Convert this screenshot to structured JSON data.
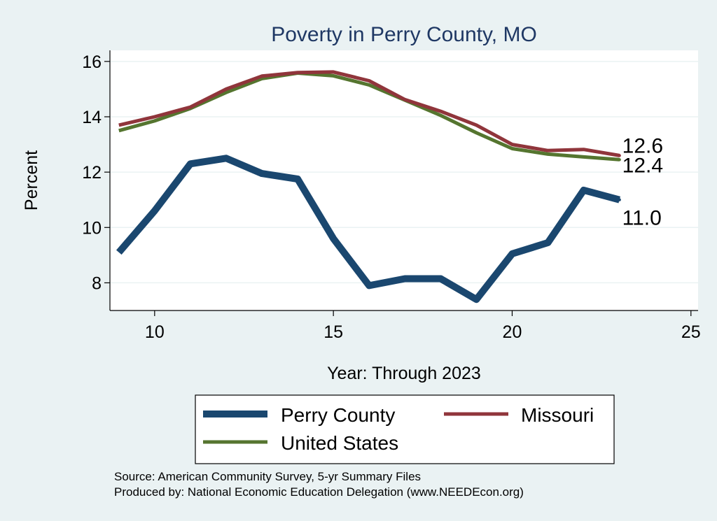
{
  "chart_data": {
    "type": "line",
    "title": "Poverty in Perry County, MO",
    "xlabel": "Year: Through 2023",
    "ylabel": "Percent",
    "xlim": [
      8.75,
      25.2
    ],
    "ylim": [
      7.0,
      16.4
    ],
    "xticks": [
      10,
      15,
      20,
      25
    ],
    "yticks": [
      8,
      10,
      12,
      14,
      16
    ],
    "grid": true,
    "legend_position": "bottom",
    "x": [
      9,
      10,
      11,
      12,
      13,
      14,
      15,
      16,
      17,
      18,
      19,
      20,
      21,
      22,
      23
    ],
    "series": [
      {
        "name": "Perry County",
        "color": "#1a476f",
        "values": [
          9.1,
          10.6,
          12.3,
          12.5,
          11.95,
          11.75,
          9.6,
          7.9,
          8.15,
          8.15,
          7.4,
          9.05,
          9.45,
          11.35,
          11.0
        ],
        "end_label": "11.0"
      },
      {
        "name": "Missouri",
        "color": "#90353b",
        "values": [
          13.7,
          14.0,
          14.35,
          15.0,
          15.47,
          15.6,
          15.62,
          15.3,
          14.62,
          14.2,
          13.7,
          13.0,
          12.78,
          12.82,
          12.6
        ],
        "end_label": "12.6"
      },
      {
        "name": "United States",
        "color": "#55752f",
        "values": [
          13.5,
          13.85,
          14.3,
          14.88,
          15.38,
          15.58,
          15.48,
          15.15,
          14.6,
          14.05,
          13.42,
          12.85,
          12.65,
          12.55,
          12.45
        ],
        "end_label": "12.4"
      }
    ]
  },
  "legend": {
    "items": [
      "Perry County",
      "Missouri",
      "United States"
    ]
  },
  "footer": {
    "source": "Source: American Community Survey, 5-yr Summary Files",
    "produced_by": "Produced by: National Economic Education Delegation (www.NEEDEcon.org)"
  }
}
